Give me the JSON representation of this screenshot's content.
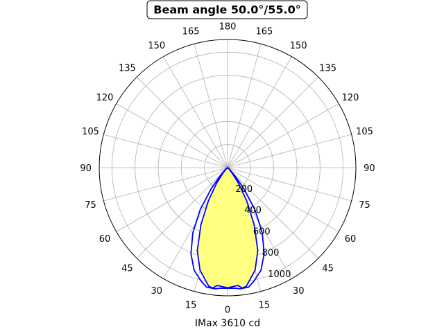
{
  "chart_data": {
    "type": "polar",
    "title": "Beam angle 50.0°/55.0°",
    "xlabel": "IMax 3610 cd",
    "angle_ticks": [
      {
        "angle": 0,
        "label": "0"
      },
      {
        "angle": 15,
        "label": "15"
      },
      {
        "angle": 30,
        "label": "30"
      },
      {
        "angle": 45,
        "label": "45"
      },
      {
        "angle": 60,
        "label": "60"
      },
      {
        "angle": 75,
        "label": "75"
      },
      {
        "angle": 90,
        "label": "90"
      },
      {
        "angle": 105,
        "label": "105"
      },
      {
        "angle": 120,
        "label": "120"
      },
      {
        "angle": 135,
        "label": "135"
      },
      {
        "angle": 150,
        "label": "150"
      },
      {
        "angle": 165,
        "label": "165"
      },
      {
        "angle": 180,
        "label": "180"
      },
      {
        "angle": -165,
        "label": "165"
      },
      {
        "angle": -150,
        "label": "150"
      },
      {
        "angle": -135,
        "label": "135"
      },
      {
        "angle": -120,
        "label": "120"
      },
      {
        "angle": -105,
        "label": "105"
      },
      {
        "angle": -90,
        "label": "90"
      },
      {
        "angle": -75,
        "label": "75"
      },
      {
        "angle": -60,
        "label": "60"
      },
      {
        "angle": -45,
        "label": "45"
      },
      {
        "angle": -30,
        "label": "30"
      },
      {
        "angle": -15,
        "label": "15"
      }
    ],
    "radial_ticks": [
      200,
      400,
      600,
      800,
      1000
    ],
    "radial_tick_labels": [
      "200",
      "400",
      "600",
      "800",
      "1000"
    ],
    "rlim": [
      0,
      1110
    ],
    "grid": true,
    "series": [
      {
        "color": "#0000ff",
        "fill": "#ffff80",
        "points": [
          {
            "angle": 0,
            "r": 1040
          },
          {
            "angle": 3,
            "r": 1030
          },
          {
            "angle": 5,
            "r": 1025
          },
          {
            "angle": 7,
            "r": 1050
          },
          {
            "angle": 9,
            "r": 1040
          },
          {
            "angle": 11,
            "r": 995
          },
          {
            "angle": 15,
            "r": 920
          },
          {
            "angle": 20,
            "r": 765
          },
          {
            "angle": 25,
            "r": 545
          },
          {
            "angle": 30,
            "r": 330
          },
          {
            "angle": 35,
            "r": 165
          },
          {
            "angle": 40,
            "r": 60
          },
          {
            "angle": 45,
            "r": 18
          },
          {
            "angle": 60,
            "r": 0
          },
          {
            "angle": -45,
            "r": 18
          },
          {
            "angle": -40,
            "r": 60
          },
          {
            "angle": -35,
            "r": 165
          },
          {
            "angle": -30,
            "r": 330
          },
          {
            "angle": -25,
            "r": 545
          },
          {
            "angle": -20,
            "r": 765
          },
          {
            "angle": -15,
            "r": 920
          },
          {
            "angle": -11,
            "r": 995
          },
          {
            "angle": -9,
            "r": 1040
          },
          {
            "angle": -7,
            "r": 1050
          },
          {
            "angle": -5,
            "r": 1025
          },
          {
            "angle": -3,
            "r": 1030
          }
        ]
      },
      {
        "color": "#0000ff",
        "fill": "none",
        "points": [
          {
            "angle": 0,
            "r": 1045
          },
          {
            "angle": 3,
            "r": 1045
          },
          {
            "angle": 6,
            "r": 1055
          },
          {
            "angle": 10,
            "r": 1050
          },
          {
            "angle": 13,
            "r": 1010
          },
          {
            "angle": 18,
            "r": 935
          },
          {
            "angle": 23,
            "r": 810
          },
          {
            "angle": 28,
            "r": 640
          },
          {
            "angle": 33,
            "r": 435
          },
          {
            "angle": 38,
            "r": 225
          },
          {
            "angle": 43,
            "r": 85
          },
          {
            "angle": 50,
            "r": 20
          },
          {
            "angle": 60,
            "r": 0
          },
          {
            "angle": -50,
            "r": 20
          },
          {
            "angle": -43,
            "r": 85
          },
          {
            "angle": -38,
            "r": 225
          },
          {
            "angle": -33,
            "r": 435
          },
          {
            "angle": -28,
            "r": 640
          },
          {
            "angle": -23,
            "r": 810
          },
          {
            "angle": -18,
            "r": 935
          },
          {
            "angle": -13,
            "r": 1010
          },
          {
            "angle": -10,
            "r": 1050
          },
          {
            "angle": -6,
            "r": 1055
          },
          {
            "angle": -3,
            "r": 1045
          }
        ]
      }
    ]
  }
}
